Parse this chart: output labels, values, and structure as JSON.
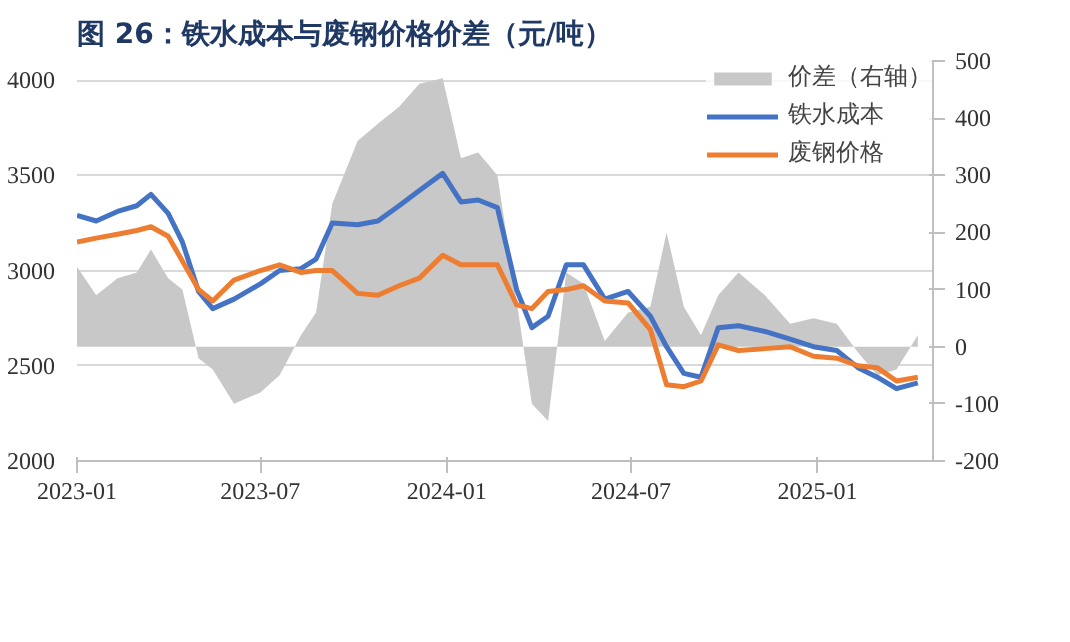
{
  "chart_data": {
    "type": "line",
    "title": "图 26：铁水成本与废钢价格价差（元/吨）",
    "x": [
      "2023-01-01",
      "2023-01-20",
      "2023-02-10",
      "2023-03-01",
      "2023-03-15",
      "2023-04-01",
      "2023-04-15",
      "2023-05-01",
      "2023-05-15",
      "2023-06-05",
      "2023-07-01",
      "2023-07-20",
      "2023-08-10",
      "2023-08-25",
      "2023-09-10",
      "2023-10-05",
      "2023-10-25",
      "2023-11-15",
      "2023-12-05",
      "2023-12-28",
      "2024-01-15",
      "2024-02-01",
      "2024-02-20",
      "2024-03-10",
      "2024-03-25",
      "2024-04-10",
      "2024-04-28",
      "2024-05-15",
      "2024-06-05",
      "2024-06-28",
      "2024-07-20",
      "2024-08-05",
      "2024-08-22",
      "2024-09-08",
      "2024-09-25",
      "2024-10-15",
      "2024-11-10",
      "2024-12-05",
      "2024-12-28",
      "2025-01-20",
      "2025-02-10",
      "2025-03-01",
      "2025-03-20",
      "2025-04-10"
    ],
    "series": [
      {
        "name": "价差（右轴）",
        "type": "area",
        "axis": "y2",
        "color": "#c8c8c8",
        "values": [
          140,
          90,
          120,
          130,
          170,
          120,
          100,
          -20,
          -40,
          -100,
          -80,
          -50,
          20,
          60,
          250,
          360,
          390,
          420,
          460,
          470,
          330,
          340,
          300,
          80,
          -100,
          -130,
          130,
          110,
          10,
          60,
          70,
          200,
          70,
          20,
          90,
          130,
          90,
          40,
          50,
          40,
          -10,
          -50,
          -40,
          20
        ]
      },
      {
        "name": "铁水成本",
        "type": "line",
        "color": "#4472c4",
        "values": [
          3290,
          3260,
          3310,
          3340,
          3400,
          3300,
          3150,
          2890,
          2800,
          2850,
          2930,
          3000,
          3010,
          3060,
          3250,
          3240,
          3260,
          3340,
          3420,
          3510,
          3360,
          3370,
          3330,
          2900,
          2700,
          2760,
          3030,
          3030,
          2850,
          2890,
          2760,
          2600,
          2460,
          2440,
          2700,
          2710,
          2680,
          2640,
          2600,
          2580,
          2490,
          2440,
          2380,
          2410
        ]
      },
      {
        "name": "废钢价格",
        "color": "#ed7d31",
        "values": [
          3150,
          3170,
          3190,
          3210,
          3230,
          3180,
          3050,
          2900,
          2840,
          2950,
          3000,
          3030,
          2990,
          3000,
          3000,
          2880,
          2870,
          2920,
          2960,
          3080,
          3030,
          3030,
          3030,
          2820,
          2800,
          2890,
          2900,
          2920,
          2840,
          2830,
          2690,
          2400,
          2390,
          2420,
          2610,
          2580,
          2590,
          2600,
          2550,
          2540,
          2500,
          2490,
          2420,
          2440
        ]
      }
    ],
    "xlim": [
      "2023-01-01",
      "2025-04-25"
    ],
    "xticks": [
      {
        "value": "2023-01-01",
        "label": "2023-01"
      },
      {
        "value": "2023-07-01",
        "label": "2023-07"
      },
      {
        "value": "2024-01-01",
        "label": "2024-01"
      },
      {
        "value": "2024-07-01",
        "label": "2024-07"
      },
      {
        "value": "2025-01-01",
        "label": "2025-01"
      }
    ],
    "ylim": [
      2000,
      4100
    ],
    "yticks": [
      2000,
      2500,
      3000,
      3500,
      4000
    ],
    "y2lim": [
      -200,
      500
    ],
    "y2ticks": [
      -200,
      -100,
      0,
      100,
      200,
      300,
      400,
      500
    ],
    "grid": "y",
    "legend": "top right",
    "line_style": "solid",
    "marker": "none"
  }
}
